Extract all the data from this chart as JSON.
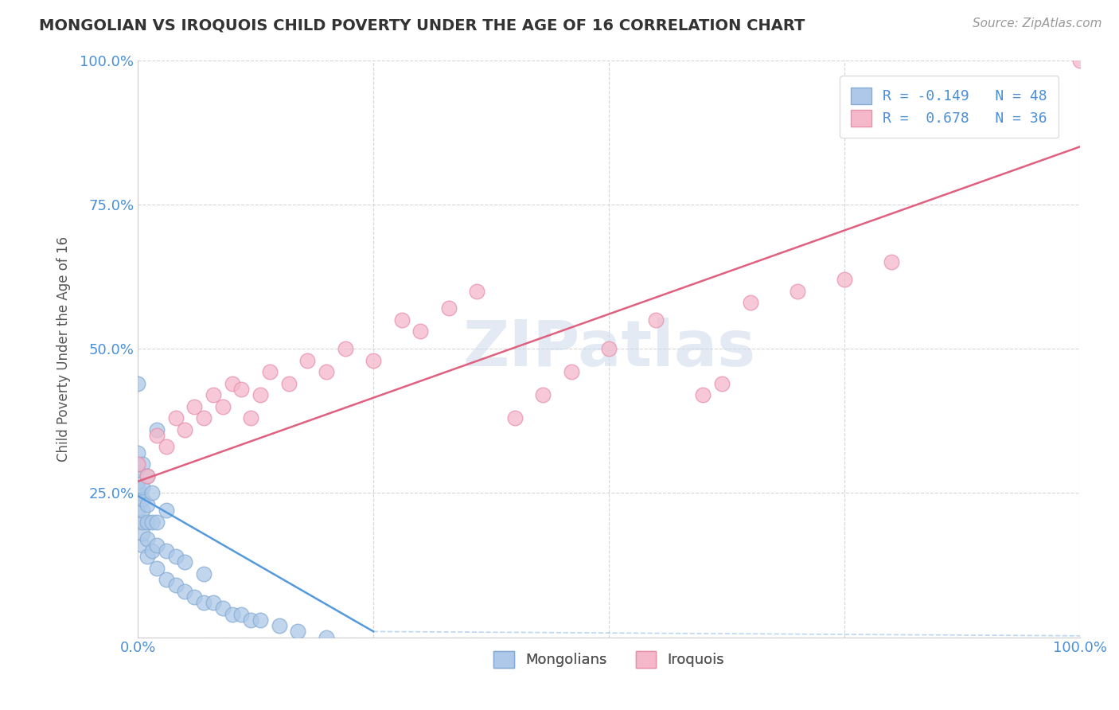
{
  "title": "MONGOLIAN VS IROQUOIS CHILD POVERTY UNDER THE AGE OF 16 CORRELATION CHART",
  "source": "Source: ZipAtlas.com",
  "ylabel": "Child Poverty Under the Age of 16",
  "xlim": [
    0.0,
    1.0
  ],
  "ylim": [
    0.0,
    1.0
  ],
  "xticks": [
    0.0,
    0.25,
    0.5,
    0.75,
    1.0
  ],
  "yticks": [
    0.0,
    0.25,
    0.5,
    0.75,
    1.0
  ],
  "xticklabels": [
    "0.0%",
    "",
    "",
    "",
    "100.0%"
  ],
  "yticklabels": [
    "",
    "25.0%",
    "50.0%",
    "75.0%",
    "100.0%"
  ],
  "mongolian_color": "#adc8e8",
  "iroquois_color": "#f5b8cb",
  "mongolian_edge": "#85acd4",
  "iroquois_edge": "#e890aa",
  "trend_mongolian_color": "#5599dd",
  "trend_iroquois_color": "#e06080",
  "legend_mongolian_label": "R = -0.149   N = 48",
  "legend_iroquois_label": "R =  0.678   N = 36",
  "watermark": "ZIPatlas",
  "background_color": "#ffffff",
  "grid_color": "#cccccc",
  "tick_color": "#4a90d9",
  "title_color": "#333333",
  "source_color": "#999999",
  "ylabel_color": "#555555",
  "mongolian_x": [
    0.0,
    0.0,
    0.0,
    0.0,
    0.0,
    0.0,
    0.0,
    0.0,
    0.0,
    0.0,
    0.005,
    0.005,
    0.005,
    0.005,
    0.005,
    0.005,
    0.005,
    0.01,
    0.01,
    0.01,
    0.01,
    0.01,
    0.015,
    0.015,
    0.015,
    0.02,
    0.02,
    0.02,
    0.02,
    0.03,
    0.03,
    0.03,
    0.04,
    0.04,
    0.05,
    0.05,
    0.06,
    0.07,
    0.07,
    0.08,
    0.09,
    0.1,
    0.11,
    0.12,
    0.13,
    0.15,
    0.17,
    0.2
  ],
  "mongolian_y": [
    0.2,
    0.22,
    0.24,
    0.25,
    0.26,
    0.27,
    0.29,
    0.3,
    0.32,
    0.44,
    0.16,
    0.18,
    0.2,
    0.22,
    0.24,
    0.26,
    0.3,
    0.14,
    0.17,
    0.2,
    0.23,
    0.28,
    0.15,
    0.2,
    0.25,
    0.12,
    0.16,
    0.2,
    0.36,
    0.1,
    0.15,
    0.22,
    0.09,
    0.14,
    0.08,
    0.13,
    0.07,
    0.06,
    0.11,
    0.06,
    0.05,
    0.04,
    0.04,
    0.03,
    0.03,
    0.02,
    0.01,
    0.0
  ],
  "iroquois_x": [
    0.0,
    0.01,
    0.02,
    0.03,
    0.04,
    0.05,
    0.06,
    0.07,
    0.08,
    0.09,
    0.1,
    0.11,
    0.12,
    0.13,
    0.14,
    0.16,
    0.18,
    0.2,
    0.22,
    0.25,
    0.28,
    0.3,
    0.33,
    0.36,
    0.4,
    0.43,
    0.46,
    0.5,
    0.55,
    0.6,
    0.62,
    0.65,
    0.7,
    0.75,
    0.8,
    1.0
  ],
  "iroquois_y": [
    0.3,
    0.28,
    0.35,
    0.33,
    0.38,
    0.36,
    0.4,
    0.38,
    0.42,
    0.4,
    0.44,
    0.43,
    0.38,
    0.42,
    0.46,
    0.44,
    0.48,
    0.46,
    0.5,
    0.48,
    0.55,
    0.53,
    0.57,
    0.6,
    0.38,
    0.42,
    0.46,
    0.5,
    0.55,
    0.42,
    0.44,
    0.58,
    0.6,
    0.62,
    0.65,
    1.0
  ],
  "trend_mongo_x0": 0.0,
  "trend_mongo_x1": 0.25,
  "trend_mongo_y0": 0.245,
  "trend_mongo_y1": 0.01,
  "trend_iro_x0": 0.0,
  "trend_iro_x1": 1.0,
  "trend_iro_y0": 0.27,
  "trend_iro_y1": 0.85
}
